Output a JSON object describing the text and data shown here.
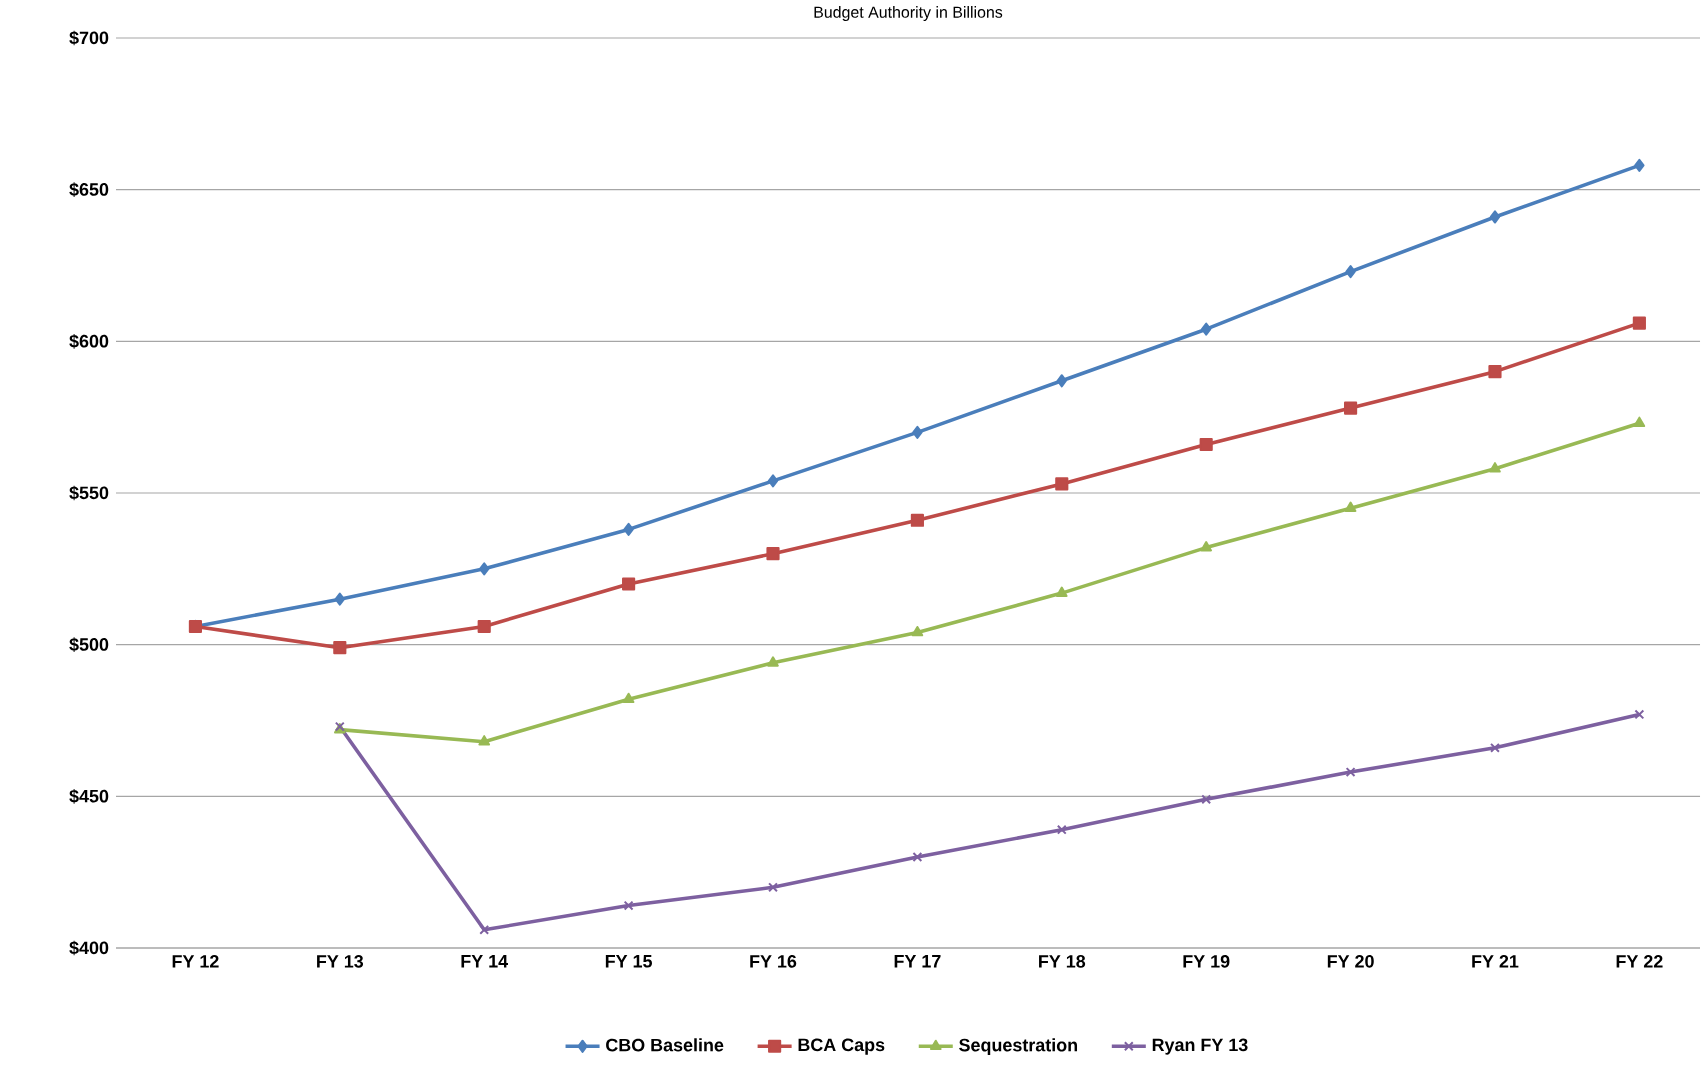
{
  "chart_data": {
    "type": "line",
    "title": "Budget Authority in Billions",
    "categories": [
      "FY 12",
      "FY 13",
      "FY 14",
      "FY 15",
      "FY 16",
      "FY 17",
      "FY 18",
      "FY 19",
      "FY 20",
      "FY 21",
      "FY 22"
    ],
    "series": [
      {
        "name": "CBO Baseline",
        "color": "#4a7ebb",
        "marker": "diamond",
        "values": [
          506,
          515,
          525,
          538,
          554,
          570,
          587,
          604,
          623,
          641,
          658
        ]
      },
      {
        "name": "BCA Caps",
        "color": "#be4b48",
        "marker": "square",
        "values": [
          506,
          499,
          506,
          520,
          530,
          541,
          553,
          566,
          578,
          590,
          606
        ]
      },
      {
        "name": "Sequestration",
        "color": "#98b954",
        "marker": "triangle",
        "values": [
          null,
          472,
          468,
          482,
          494,
          504,
          517,
          532,
          545,
          558,
          573
        ]
      },
      {
        "name": "Ryan FY 13",
        "color": "#7d60a0",
        "marker": "cross",
        "values": [
          null,
          473,
          406,
          414,
          420,
          430,
          439,
          449,
          458,
          466,
          477
        ]
      }
    ],
    "ylim": [
      400,
      700
    ],
    "yticks": [
      {
        "value": 400,
        "label": "$400"
      },
      {
        "value": 450,
        "label": "$450"
      },
      {
        "value": 500,
        "label": "$500"
      },
      {
        "value": 550,
        "label": "$550"
      },
      {
        "value": 600,
        "label": "$600"
      },
      {
        "value": 650,
        "label": "$650"
      },
      {
        "value": 700,
        "label": "$700"
      }
    ],
    "grid": "y",
    "legend": "bottom",
    "line_style": "solid"
  }
}
